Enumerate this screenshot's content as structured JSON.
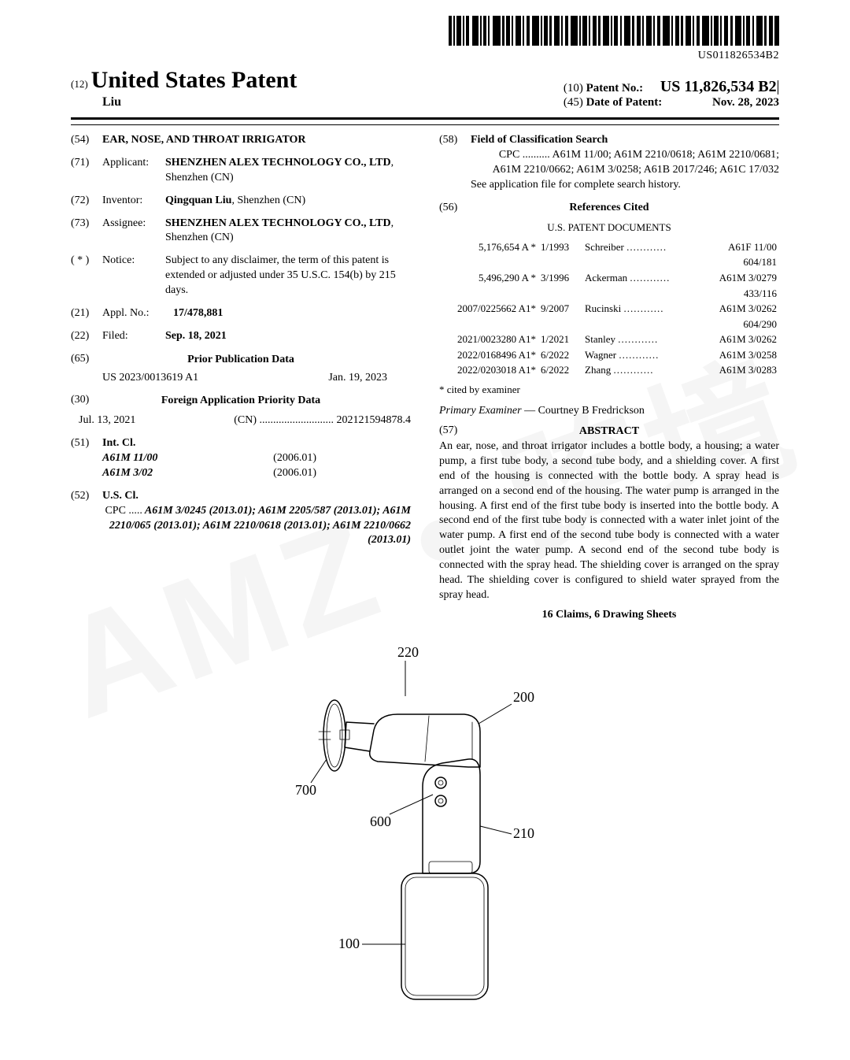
{
  "barcode_caption": "US011826534B2",
  "header": {
    "doc_kind_code": "(12)",
    "doc_kind": "United States Patent",
    "inventor_name": "Liu",
    "patent_no_code": "(10)",
    "patent_no_label": "Patent No.:",
    "patent_no": "US 11,826,534 B2",
    "date_code": "(45)",
    "date_label": "Date of Patent:",
    "date": "Nov. 28, 2023"
  },
  "left": {
    "title": {
      "code": "(54)",
      "text": "EAR, NOSE, AND THROAT IRRIGATOR"
    },
    "applicant": {
      "code": "(71)",
      "label": "Applicant:",
      "name": "SHENZHEN ALEX TECHNOLOGY CO., LTD",
      "loc": ", Shenzhen (CN)"
    },
    "inventor": {
      "code": "(72)",
      "label": "Inventor:",
      "name": "Qingquan Liu",
      "loc": ", Shenzhen (CN)"
    },
    "assignee": {
      "code": "(73)",
      "label": "Assignee:",
      "name": "SHENZHEN ALEX TECHNOLOGY CO., LTD",
      "loc": ", Shenzhen (CN)"
    },
    "notice": {
      "code": "( * )",
      "label": "Notice:",
      "text": "Subject to any disclaimer, the term of this patent is extended or adjusted under 35 U.S.C. 154(b) by 215 days."
    },
    "appl_no": {
      "code": "(21)",
      "label": "Appl. No.:",
      "val": "17/478,881"
    },
    "filed": {
      "code": "(22)",
      "label": "Filed:",
      "val": "Sep. 18, 2021"
    },
    "prior_pub": {
      "code": "(65)",
      "title": "Prior Publication Data",
      "num": "US 2023/0013619 A1",
      "date": "Jan. 19, 2023"
    },
    "foreign": {
      "code": "(30)",
      "title": "Foreign Application Priority Data",
      "date": "Jul. 13, 2021",
      "country": "(CN)",
      "num": "202121594878.4"
    },
    "intcl": {
      "code": "(51)",
      "label": "Int. Cl.",
      "rows": [
        {
          "cls": "A61M 11/00",
          "ver": "(2006.01)"
        },
        {
          "cls": "A61M 3/02",
          "ver": "(2006.01)"
        }
      ]
    },
    "uscl": {
      "code": "(52)",
      "label": "U.S. Cl.",
      "cpc_label": "CPC .....",
      "cpc": " A61M 3/0245 (2013.01); A61M 2205/587 (2013.01); A61M 2210/065 (2013.01); A61M 2210/0618 (2013.01); A61M 2210/0662 (2013.01)"
    }
  },
  "right": {
    "field_search": {
      "code": "(58)",
      "label": "Field of Classification Search",
      "cpc_label": "CPC ..........",
      "cpc": " A61M 11/00; A61M 2210/0618; A61M 2210/0681; A61M 2210/0662; A61M 3/0258; A61B 2017/246; A61C 17/032",
      "note": "See application file for complete search history."
    },
    "refs": {
      "code": "(56)",
      "title": "References Cited",
      "subtitle": "U.S. PATENT DOCUMENTS",
      "rows": [
        {
          "num": "5,176,654 A *",
          "date": "1/1993",
          "name": "Schreiber",
          "cls": "A61F 11/00",
          "sub": "604/181"
        },
        {
          "num": "5,496,290 A *",
          "date": "3/1996",
          "name": "Ackerman",
          "cls": "A61M 3/0279",
          "sub": "433/116"
        },
        {
          "num": "2007/0225662 A1*",
          "date": "9/2007",
          "name": "Rucinski",
          "cls": "A61M 3/0262",
          "sub": "604/290"
        },
        {
          "num": "2021/0023280 A1*",
          "date": "1/2021",
          "name": "Stanley",
          "cls": "A61M 3/0262",
          "sub": ""
        },
        {
          "num": "2022/0168496 A1*",
          "date": "6/2022",
          "name": "Wagner",
          "cls": "A61M 3/0258",
          "sub": ""
        },
        {
          "num": "2022/0203018 A1*",
          "date": "6/2022",
          "name": "Zhang",
          "cls": "A61M 3/0283",
          "sub": ""
        }
      ],
      "cited_note": "* cited by examiner"
    },
    "examiner": {
      "label": "Primary Examiner",
      "sep": " — ",
      "name": "Courtney B Fredrickson"
    },
    "abstract": {
      "code": "(57)",
      "title": "ABSTRACT",
      "text": "An ear, nose, and throat irrigator includes a bottle body, a housing; a water pump, a first tube body, a second tube body, and a shielding cover. A first end of the housing is connected with the bottle body. A spray head is arranged on a second end of the housing. The water pump is arranged in the housing. A first end of the first tube body is inserted into the bottle body. A second end of the first tube body is connected with a water inlet joint of the water pump. A first end of the second tube body is connected with a water outlet joint the water pump. A second end of the second tube body is connected with the spray head. The shielding cover is arranged on the spray head. The shielding cover is configured to shield water sprayed from the spray head."
    },
    "claims": "16 Claims, 6 Drawing Sheets"
  },
  "figure_labels": [
    "220",
    "200",
    "700",
    "600",
    "210",
    "100"
  ],
  "colors": {
    "text": "#000000",
    "bg": "#ffffff",
    "watermark": "rgba(0,0,0,0.04)"
  }
}
